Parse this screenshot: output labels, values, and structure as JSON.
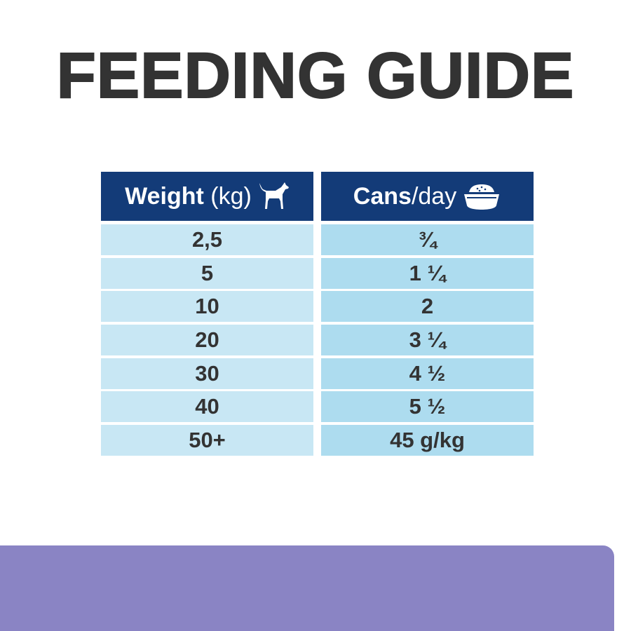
{
  "title": "FEEDING GUIDE",
  "table": {
    "headers": [
      {
        "bold": "Weight",
        "light": " (kg)",
        "icon": "dog-icon"
      },
      {
        "bold": "Cans",
        "light": "/day",
        "icon": "food-bowl-icon"
      }
    ],
    "rows": [
      {
        "weight": "2,5",
        "cans": "¾"
      },
      {
        "weight": "5",
        "cans": "1 ¼"
      },
      {
        "weight": "10",
        "cans": "2"
      },
      {
        "weight": "20",
        "cans": "3 ¼"
      },
      {
        "weight": "30",
        "cans": "4 ½"
      },
      {
        "weight": "40",
        "cans": "5 ½"
      },
      {
        "weight": "50+",
        "cans": "45 g/kg"
      }
    ]
  },
  "colors": {
    "header": "#133b78",
    "weight_cell": "#c8e7f4",
    "cans_cell": "#addcef",
    "band": "#8a84c4",
    "text": "#333333"
  }
}
